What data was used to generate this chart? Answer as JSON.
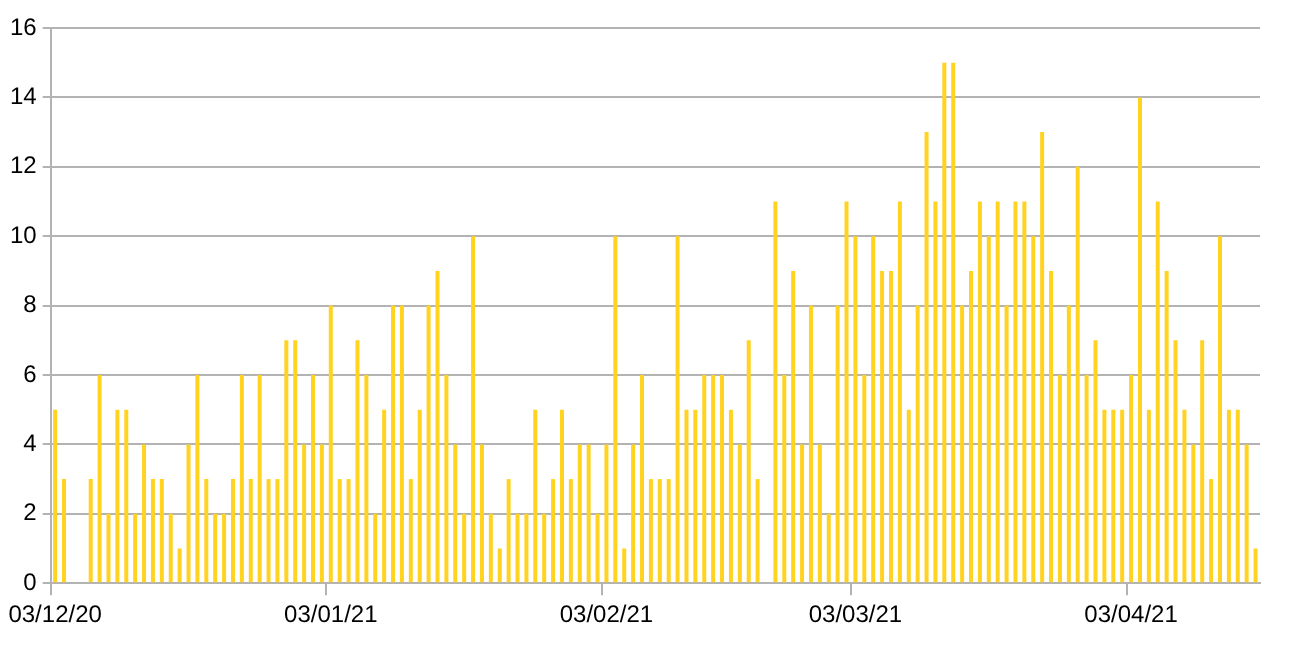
{
  "chart_data": {
    "type": "bar",
    "categories": [
      "03/12/20",
      null,
      null,
      null,
      null,
      null,
      null,
      null,
      null,
      null,
      null,
      null,
      null,
      null,
      null,
      null,
      null,
      null,
      null,
      null,
      null,
      null,
      null,
      null,
      null,
      null,
      null,
      null,
      null,
      null,
      null,
      "03/01/21",
      null,
      null,
      null,
      null,
      null,
      null,
      null,
      null,
      null,
      null,
      null,
      null,
      null,
      null,
      null,
      null,
      null,
      null,
      null,
      null,
      null,
      null,
      null,
      null,
      null,
      null,
      null,
      null,
      null,
      null,
      "03/02/21",
      null,
      null,
      null,
      null,
      null,
      null,
      null,
      null,
      null,
      null,
      null,
      null,
      null,
      null,
      null,
      null,
      null,
      null,
      null,
      null,
      null,
      null,
      null,
      null,
      null,
      null,
      null,
      "03/03/21",
      null,
      null,
      null,
      null,
      null,
      null,
      null,
      null,
      null,
      null,
      null,
      null,
      null,
      null,
      null,
      null,
      null,
      null,
      null,
      null,
      null,
      null,
      null,
      null,
      null,
      null,
      null,
      null,
      null,
      null,
      "03/04/21",
      null,
      null,
      null,
      null,
      null,
      null,
      null,
      null,
      null,
      null,
      null,
      null,
      null,
      null
    ],
    "values": [
      5,
      3,
      0,
      0,
      3,
      6,
      2,
      5,
      5,
      2,
      4,
      3,
      3,
      2,
      1,
      4,
      6,
      3,
      2,
      2,
      3,
      6,
      3,
      6,
      3,
      3,
      7,
      7,
      4,
      6,
      4,
      8,
      3,
      3,
      7,
      6,
      2,
      5,
      8,
      8,
      3,
      5,
      8,
      9,
      6,
      4,
      2,
      10,
      4,
      2,
      1,
      3,
      2,
      2,
      5,
      2,
      3,
      5,
      3,
      4,
      4,
      2,
      4,
      10,
      1,
      4,
      6,
      3,
      3,
      3,
      10,
      5,
      5,
      6,
      6,
      6,
      5,
      4,
      7,
      3,
      0,
      11,
      6,
      9,
      4,
      8,
      4,
      2,
      8,
      11,
      10,
      6,
      10,
      9,
      9,
      11,
      5,
      8,
      13,
      11,
      15,
      15,
      8,
      9,
      11,
      10,
      11,
      8,
      11,
      11,
      10,
      13,
      9,
      6,
      8,
      12,
      6,
      7,
      5,
      5,
      5,
      6,
      14,
      5,
      11,
      9,
      7,
      5,
      4,
      7,
      3,
      10,
      5,
      5,
      4,
      1
    ],
    "color": "#ffd320",
    "ylim": [
      0,
      16
    ],
    "yticks": [
      0,
      2,
      4,
      6,
      8,
      10,
      12,
      14,
      16
    ],
    "grid": "y",
    "legend": false
  }
}
